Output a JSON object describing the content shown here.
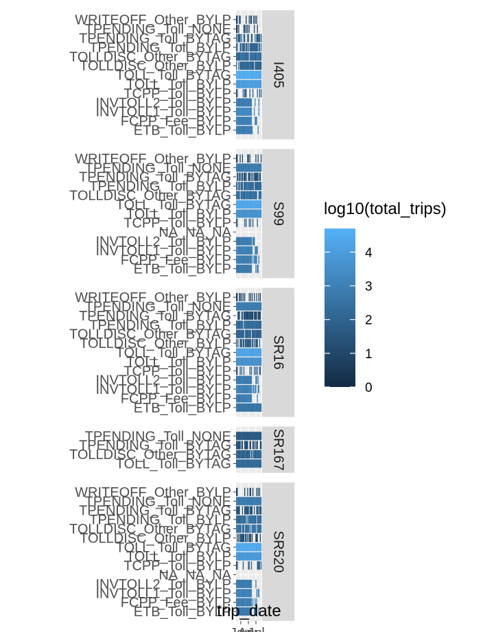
{
  "chart_data": {
    "type": "heatmap",
    "xlabel": "trip_date",
    "x_ticks": [
      "Jan",
      "Apr",
      "Jul"
    ],
    "legend": {
      "title": "log10(total_trips)",
      "ticks": [
        0,
        1,
        2,
        3,
        4
      ],
      "range": [
        0,
        4.7
      ],
      "color_low": "#132B43",
      "color_high": "#56B1F7",
      "placement": "right"
    },
    "strip_fill": "#d9d9d9",
    "panel_bg": "#ebebeb",
    "grid": true,
    "facets": [
      {
        "name": "I405",
        "rows": [
          {
            "label": "WRITEOFF_Other_BYLP",
            "pattern": "sparse",
            "value": 0.3
          },
          {
            "label": "TPENDING_Toll_NONE",
            "pattern": "sparse",
            "value": 0.4
          },
          {
            "label": "TPENDING_Toll_BYTAG",
            "pattern": "mixed",
            "value": 1.6
          },
          {
            "label": "TPENDING_Toll_BYLP",
            "pattern": "mixed",
            "value": 1.8
          },
          {
            "label": "TOLLDISC_Other_BYTAG",
            "pattern": "dense",
            "value": 2.2
          },
          {
            "label": "TOLLDISC_Other_BYLP",
            "pattern": "dense",
            "value": 2.0
          },
          {
            "label": "TOLL_Toll_BYTAG",
            "pattern": "full",
            "value": 4.5
          },
          {
            "label": "TOLL_Toll_BYLP",
            "pattern": "full",
            "value": 4.0
          },
          {
            "label": "TCPP_Toll_BYLP",
            "pattern": "sparse",
            "value": 1.2
          },
          {
            "label": "INVTOLL2_Toll_BYLP",
            "pattern": "partial",
            "value": 2.8
          },
          {
            "label": "INVTOLL1_Toll_BYLP",
            "pattern": "partial",
            "value": 3.2
          },
          {
            "label": "FCPP_Fee_BYLP",
            "pattern": "partial",
            "value": 3.0
          },
          {
            "label": "ETB_Toll_BYLP",
            "pattern": "partial",
            "value": 2.9
          }
        ]
      },
      {
        "name": "S99",
        "rows": [
          {
            "label": "WRITEOFF_Other_BYLP",
            "pattern": "sparse",
            "value": 0.3
          },
          {
            "label": "TPENDING_Toll_NONE",
            "pattern": "full",
            "value": 2.8
          },
          {
            "label": "TPENDING_Toll_BYTAG",
            "pattern": "mixed",
            "value": 1.2
          },
          {
            "label": "TPENDING_Toll_BYLP",
            "pattern": "dense",
            "value": 2.2
          },
          {
            "label": "TOLLDISC_Other_BYTAG",
            "pattern": "dense",
            "value": 2.4
          },
          {
            "label": "TOLL_Toll_BYTAG",
            "pattern": "full",
            "value": 4.3
          },
          {
            "label": "TOLL_Toll_BYLP",
            "pattern": "full",
            "value": 3.6
          },
          {
            "label": "TCPP_Toll_BYLP",
            "pattern": "sparse",
            "value": 1.2
          },
          {
            "label": "NA_NA_NA",
            "pattern": "none",
            "value": 0
          },
          {
            "label": "INVTOLL2_Toll_BYLP",
            "pattern": "partial",
            "value": 2.8
          },
          {
            "label": "INVTOLL1_Toll_BYLP",
            "pattern": "partial",
            "value": 3.0
          },
          {
            "label": "FCPP_Fee_BYLP",
            "pattern": "partial",
            "value": 2.9
          },
          {
            "label": "ETB_Toll_BYLP",
            "pattern": "partial",
            "value": 2.7
          }
        ]
      },
      {
        "name": "SR16",
        "rows": [
          {
            "label": "WRITEOFF_Other_BYLP",
            "pattern": "sparse",
            "value": 0.5
          },
          {
            "label": "TPENDING_Toll_NONE",
            "pattern": "full",
            "value": 2.8
          },
          {
            "label": "TPENDING_Toll_BYTAG",
            "pattern": "mixed",
            "value": 1.0
          },
          {
            "label": "TPENDING_Toll_BYLP",
            "pattern": "dense",
            "value": 2.2
          },
          {
            "label": "TOLLDISC_Other_BYTAG",
            "pattern": "dense",
            "value": 2.0
          },
          {
            "label": "TOLLDISC_Other_BYLP",
            "pattern": "mixed",
            "value": 1.4
          },
          {
            "label": "TOLL_Toll_BYTAG",
            "pattern": "full",
            "value": 4.2
          },
          {
            "label": "TOLL_Toll_BYLP",
            "pattern": "full",
            "value": 3.6
          },
          {
            "label": "TCPP_Toll_BYLP",
            "pattern": "sparse",
            "value": 1.2
          },
          {
            "label": "INVTOLL2_Toll_BYLP",
            "pattern": "partial",
            "value": 2.8
          },
          {
            "label": "INVTOLL1_Toll_BYLP",
            "pattern": "partial",
            "value": 3.0
          },
          {
            "label": "FCPP_Fee_BYLP",
            "pattern": "partial",
            "value": 2.9
          },
          {
            "label": "ETB_Toll_BYLP",
            "pattern": "full",
            "value": 2.6
          }
        ]
      },
      {
        "name": "SR167",
        "rows": [
          {
            "label": "TPENDING_Toll_NONE",
            "pattern": "full",
            "value": 1.6
          },
          {
            "label": "TPENDING_Toll_BYTAG",
            "pattern": "mixed",
            "value": 1.0
          },
          {
            "label": "TOLLDISC_Other_BYTAG",
            "pattern": "dense",
            "value": 2.0
          },
          {
            "label": "TOLL_Toll_BYTAG",
            "pattern": "full",
            "value": 2.2
          }
        ]
      },
      {
        "name": "SR520",
        "rows": [
          {
            "label": "WRITEOFF_Other_BYLP",
            "pattern": "sparse",
            "value": 0.4
          },
          {
            "label": "TPENDING_Toll_NONE",
            "pattern": "full",
            "value": 2.8
          },
          {
            "label": "TPENDING_Toll_BYTAG",
            "pattern": "mixed",
            "value": 1.2
          },
          {
            "label": "TPENDING_Toll_BYLP",
            "pattern": "dense",
            "value": 2.2
          },
          {
            "label": "TOLLDISC_Other_BYTAG",
            "pattern": "dense",
            "value": 2.4
          },
          {
            "label": "TOLLDISC_Other_BYLP",
            "pattern": "mixed",
            "value": 1.0
          },
          {
            "label": "TOLL_Toll_BYTAG",
            "pattern": "full",
            "value": 4.4
          },
          {
            "label": "TOLL_Toll_BYLP",
            "pattern": "full",
            "value": 3.8
          },
          {
            "label": "TCPP_Toll_BYLP",
            "pattern": "sparse",
            "value": 1.2
          },
          {
            "label": "NA_NA_NA",
            "pattern": "none",
            "value": 0
          },
          {
            "label": "INVTOLL2_Toll_BYLP",
            "pattern": "partial",
            "value": 2.8
          },
          {
            "label": "INVTOLL1_Toll_BYLP",
            "pattern": "partial",
            "value": 3.0
          },
          {
            "label": "FCPP_Fee_BYLP",
            "pattern": "partial",
            "value": 2.9
          },
          {
            "label": "ETB_Toll_BYLP",
            "pattern": "partial",
            "value": 2.7
          }
        ]
      }
    ]
  }
}
